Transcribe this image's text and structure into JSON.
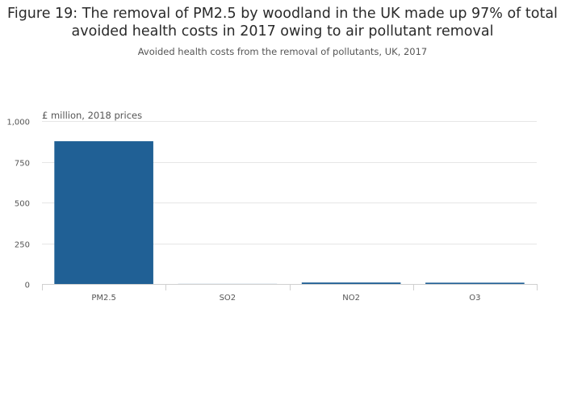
{
  "title": "Figure 19: The removal of PM2.5 by woodland in the UK made up 97% of total avoided health costs in 2017 owing to air pollutant removal",
  "subtitle": "Avoided health costs from the removal of pollutants, UK, 2017",
  "colors": {
    "bar": "#206095",
    "grid": "#e6e6e6",
    "axis": "#d0d0d0"
  },
  "chart_data": {
    "type": "bar",
    "categories": [
      "PM2.5",
      "SO2",
      "NO2",
      "O3"
    ],
    "values": [
      876,
      0.5,
      9,
      8
    ],
    "ylabel": "£ million, 2018 prices",
    "ylim": [
      0,
      1000
    ],
    "yticks": [
      0,
      250,
      500,
      750,
      1000
    ],
    "ytick_labels": [
      "0",
      "250",
      "500",
      "750",
      "1,000"
    ],
    "grid": true
  }
}
